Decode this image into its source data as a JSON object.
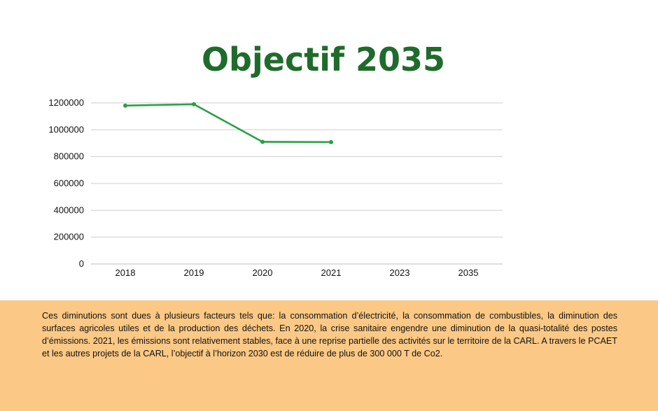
{
  "title": "Objectif 2035",
  "chart_data": {
    "type": "line",
    "title": "Objectif 2035",
    "categories": [
      "2018",
      "2019",
      "2020",
      "2021",
      "2023",
      "2035"
    ],
    "series": [
      {
        "values": [
          1180000,
          1190000,
          910000,
          908000,
          null,
          null
        ]
      }
    ],
    "ylim": [
      0,
      1200000
    ],
    "yticks": [
      "0",
      "200000",
      "400000",
      "600000",
      "800000",
      "1000000",
      "1200000"
    ],
    "grid": true,
    "line_color": "#2aa046",
    "grid_color": "#cfcfcf"
  },
  "footer": {
    "text": "Ces diminutions sont dues à plusieurs facteurs tels que: la consommation d’électricité, la consommation de combustibles, la diminution des surfaces agricoles utiles et de la production des déchets. En 2020, la crise sanitaire engendre une diminution de la quasi-totalité des postes d’émissions. 2021, les émissions sont relativement stables, face à une reprise partielle des activités sur le territoire de la CARL. A travers le PCAET et les autres projets de la CARL, l’objectif à l’horizon 2030 est de réduire de plus de 300 000 T  de Co2.",
    "bg_color": "#fbc985"
  }
}
